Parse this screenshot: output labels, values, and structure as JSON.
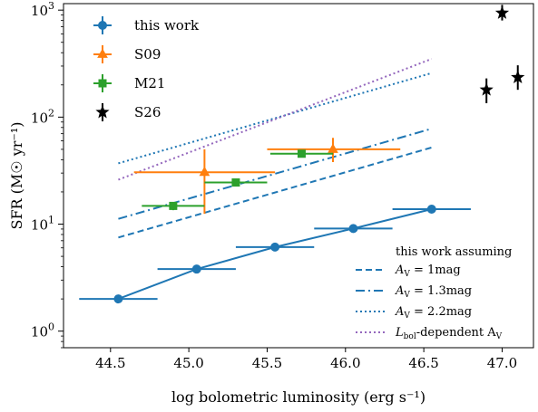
{
  "chart_data": {
    "type": "scatter",
    "title": "",
    "xlabel": "log bolometric luminosity (erg s⁻¹)",
    "ylabel": "SFR (M☉ yr⁻¹)",
    "xlim": [
      44.2,
      47.2
    ],
    "ylim": [
      0.7,
      1150
    ],
    "yscale": "log",
    "xticks": [
      "44.5",
      "45.0",
      "45.5",
      "46.0",
      "46.5",
      "47.0"
    ],
    "ytick_base": "10",
    "ytick_exponents": [
      "0",
      "1",
      "2",
      "3"
    ],
    "grid": false,
    "legend_upper": {
      "position": "top-left",
      "entries": [
        "this work",
        "S09",
        "M21",
        "S26"
      ]
    },
    "legend_lower": {
      "position": "bottom-right",
      "title_line": "this work assuming",
      "entries": [
        {
          "prefix": "A",
          "sub": "V",
          "suffix": " = 1mag"
        },
        {
          "prefix": "A",
          "sub": "V",
          "suffix": " = 1.3mag"
        },
        {
          "prefix": "A",
          "sub": "V",
          "suffix": " = 2.2mag"
        },
        {
          "prefix": "L",
          "sub": "bol",
          "suffix": "-dependent A",
          "sub2": "V"
        }
      ]
    },
    "colors": {
      "blue": "#1f77b4",
      "orange": "#ff7f0e",
      "green": "#2ca02c",
      "purple": "#9467bd",
      "black": "#000000"
    },
    "points": {
      "this_work": {
        "x": [
          44.55,
          45.05,
          45.55,
          46.05,
          46.55
        ],
        "y": [
          2.0,
          3.8,
          6.1,
          9.1,
          13.8
        ],
        "xerr": [
          0.25,
          0.25,
          0.25,
          0.25,
          0.25
        ],
        "connected": true
      },
      "S09": {
        "x": [
          45.1,
          45.92
        ],
        "y": [
          30.5,
          50.0
        ],
        "xlo": [
          44.65,
          45.5
        ],
        "xhi": [
          45.55,
          46.35
        ],
        "ylo": [
          12.5,
          38.0
        ],
        "yhi": [
          50.0,
          64.0
        ]
      },
      "M21": {
        "x": [
          44.9,
          45.3,
          45.72
        ],
        "y": [
          14.8,
          24.5,
          45.5
        ],
        "xerr": [
          0.2,
          0.2,
          0.2
        ],
        "yerr_lo": [
          1.3,
          2.0,
          3.5
        ],
        "yerr_hi": [
          1.3,
          2.0,
          3.5
        ]
      },
      "S26": {
        "x": [
          47.0,
          46.9,
          47.1
        ],
        "y": [
          940,
          180,
          235
        ],
        "yerr_lo": [
          140,
          45,
          55
        ],
        "yerr_hi": [
          180,
          50,
          70
        ]
      }
    },
    "lines": [
      {
        "style": "dashed",
        "color": "blue",
        "x": [
          44.55,
          46.55
        ],
        "y": [
          7.5,
          52
        ]
      },
      {
        "style": "dashdot",
        "color": "blue",
        "x": [
          44.55,
          46.55
        ],
        "y": [
          11.2,
          78
        ]
      },
      {
        "style": "dotted",
        "color": "blue",
        "x": [
          44.55,
          46.55
        ],
        "y": [
          37,
          258
        ]
      },
      {
        "style": "dotted",
        "color": "purple",
        "x": [
          44.55,
          46.55
        ],
        "y": [
          26,
          350
        ]
      }
    ]
  }
}
